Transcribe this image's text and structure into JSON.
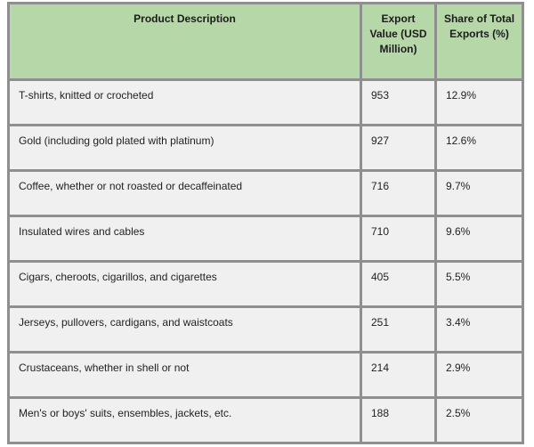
{
  "chart_data": {
    "type": "table",
    "title": "",
    "columns": [
      "Product Description",
      "Export Value (USD Million)",
      "Share of Total Exports (%)"
    ],
    "rows": [
      [
        "T-shirts, knitted or crocheted",
        "953",
        "12.9%"
      ],
      [
        "Gold (including gold plated with platinum)",
        "927",
        "12.6%"
      ],
      [
        "Coffee, whether or not roasted or decaffeinated",
        "716",
        "9.7%"
      ],
      [
        "Insulated wires and cables",
        "710",
        "9.6%"
      ],
      [
        "Cigars, cheroots, cigarillos, and cigarettes",
        "405",
        "5.5%"
      ],
      [
        "Jerseys, pullovers, cardigans, and waistcoats",
        "251",
        "3.4%"
      ],
      [
        "Crustaceans, whether in shell or not",
        "214",
        "2.9%"
      ],
      [
        "Men's or boys' suits, ensembles, jackets, etc.",
        "188",
        "2.5%"
      ]
    ],
    "layout": {
      "header_align": "center",
      "body_align": "left",
      "grid": true,
      "legend_position": "none"
    }
  },
  "colors": {
    "header_bg": "#b6d7a8",
    "row_bg": "#f0f0f0",
    "border": "#8f8f8f",
    "text": "#222222",
    "page_bg": "#ffffff"
  }
}
